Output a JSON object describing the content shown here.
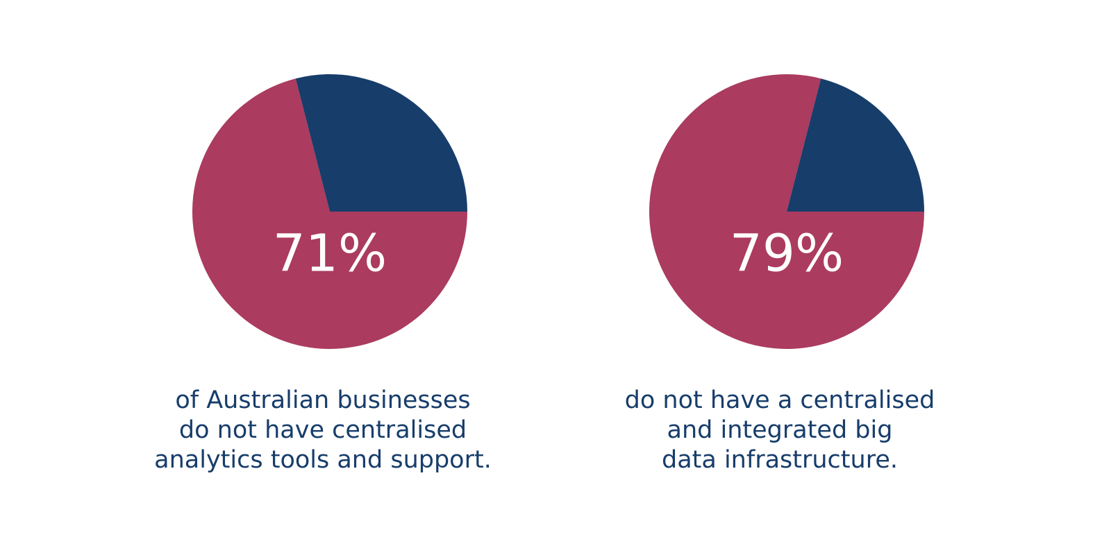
{
  "chart_data": [
    {
      "type": "pie",
      "values": [
        71,
        29
      ],
      "value_labels": [
        "71%",
        null
      ],
      "colors": [
        "#ab3b5f",
        "#173d6a"
      ],
      "caption": [
        "of Australian businesses",
        "do not have centralised",
        "analytics tools and support."
      ]
    },
    {
      "type": "pie",
      "values": [
        79,
        21
      ],
      "value_labels": [
        "79%",
        null
      ],
      "colors": [
        "#ab3b5f",
        "#173d6a"
      ],
      "caption": [
        "do not have a centralised",
        "and integrated big",
        "data infrastructure."
      ]
    }
  ]
}
